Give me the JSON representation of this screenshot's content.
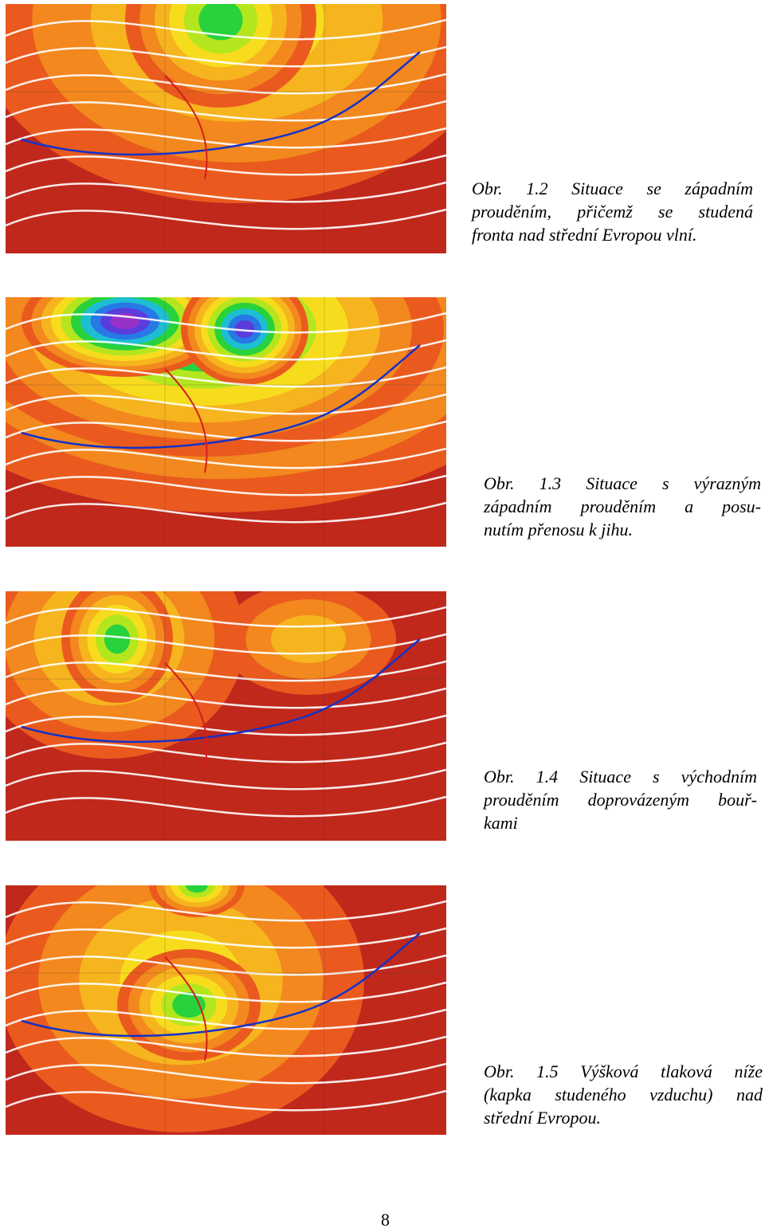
{
  "figures": [
    {
      "caption": [
        "Obr. 1.2 Situace se západním",
        "prouděním, přičemž se studená",
        "fronta nad střední Evropou vlní."
      ]
    },
    {
      "caption": [
        "Obr. 1.3 Situace s výrazným",
        "západním prouděním a posu-",
        "nutím přenosu k jihu."
      ]
    },
    {
      "caption": [
        "Obr. 1.4 Situace s východním",
        "prouděním doprovázeným bouř-",
        "kami"
      ]
    },
    {
      "caption": [
        "Obr. 1.5 Výšková tlaková níže",
        "(kapka studeného vzduchu) nad",
        "střední Evropou."
      ]
    }
  ],
  "page_number": "8"
}
